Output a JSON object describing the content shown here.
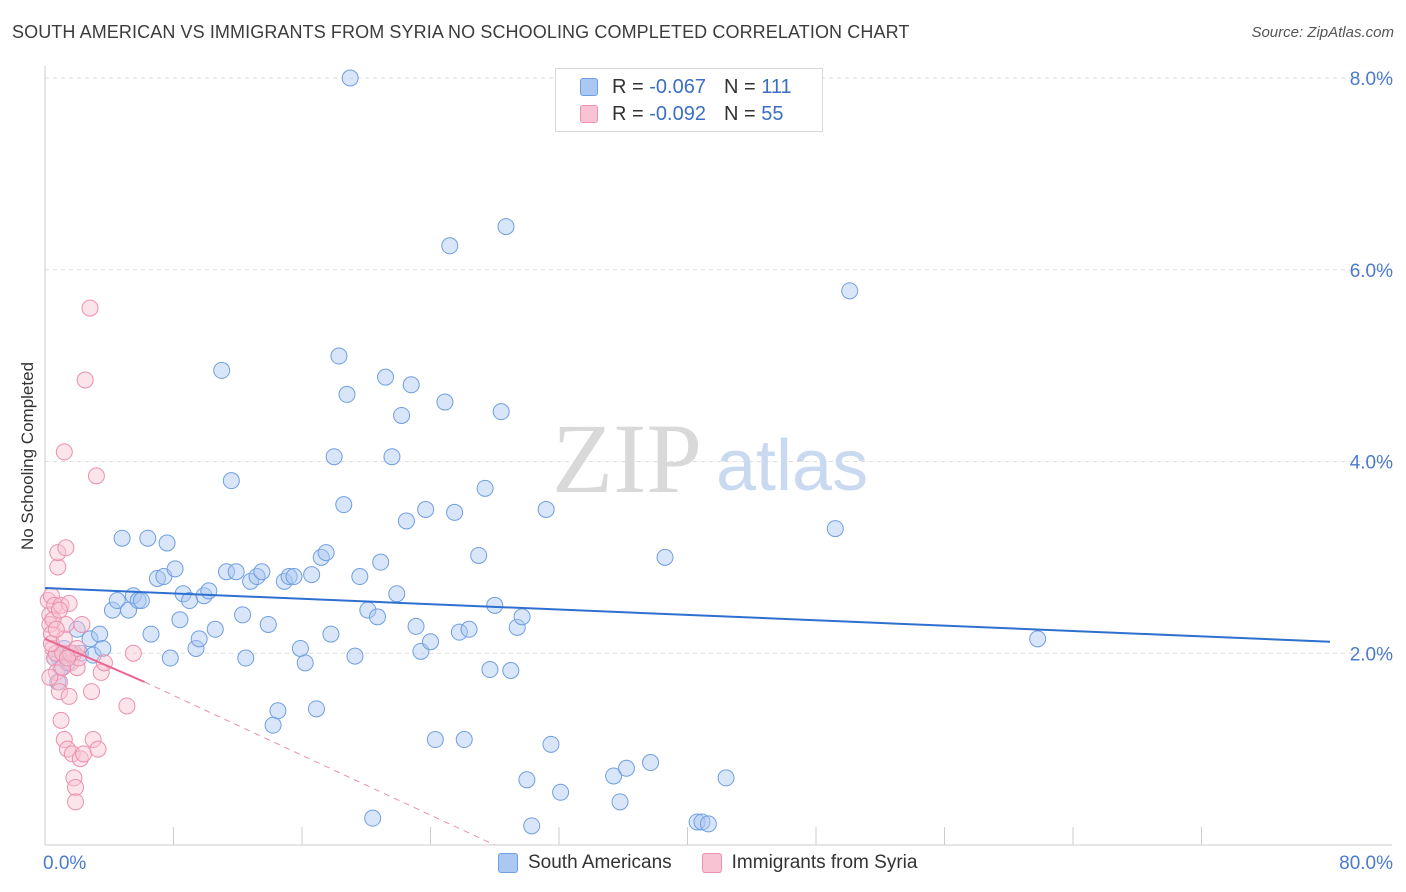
{
  "title": "SOUTH AMERICAN VS IMMIGRANTS FROM SYRIA NO SCHOOLING COMPLETED CORRELATION CHART",
  "source": "Source: ZipAtlas.com",
  "watermark": {
    "zip": "ZIP",
    "atlas": "atlas"
  },
  "legend": {
    "rows": [
      {
        "r_label": "R =",
        "r_value": "-0.067",
        "n_label": "N =",
        "n_value": "111",
        "fill": "#aac8f2",
        "stroke": "#6f9fe0"
      },
      {
        "r_label": "R =",
        "r_value": "-0.092",
        "n_label": "N =",
        "n_value": "55",
        "fill": "#f8c3d2",
        "stroke": "#eb90ad"
      }
    ]
  },
  "bottom_legend": [
    {
      "label": "South Americans",
      "fill": "#aac8f2",
      "stroke": "#6f9fe0"
    },
    {
      "label": "Immigrants from Syria",
      "fill": "#f8c3d2",
      "stroke": "#eb90ad"
    }
  ],
  "chart_data": {
    "type": "scatter",
    "title": "SOUTH AMERICAN VS IMMIGRANTS FROM SYRIA NO SCHOOLING COMPLETED CORRELATION CHART",
    "xlabel": "",
    "ylabel": "No Schooling Completed",
    "xlim": [
      0,
      80
    ],
    "ylim": [
      0,
      8.0
    ],
    "x_tick_labels": [
      "0.0%",
      "80.0%"
    ],
    "y_tick_labels": [
      "2.0%",
      "4.0%",
      "6.0%",
      "8.0%"
    ],
    "y_tick_values": [
      2,
      4,
      6,
      8
    ],
    "x_minor_ticks": [
      8,
      16,
      24,
      32,
      40,
      48,
      56,
      64,
      72
    ],
    "grid": true,
    "series": [
      {
        "name": "South Americans",
        "color": "#6f9fe0",
        "fill": "#aac8f2",
        "trend": {
          "x": [
            0,
            80
          ],
          "y": [
            2.68,
            2.12
          ]
        },
        "points": [
          [
            0.8,
            1.7
          ],
          [
            0.9,
            1.95
          ],
          [
            1.0,
            1.85
          ],
          [
            1.2,
            2.05
          ],
          [
            1.4,
            1.9
          ],
          [
            1.6,
            2.0
          ],
          [
            2.0,
            2.25
          ],
          [
            2.2,
            2.0
          ],
          [
            2.8,
            2.15
          ],
          [
            3.0,
            1.98
          ],
          [
            3.4,
            2.2
          ],
          [
            3.6,
            2.05
          ],
          [
            4.2,
            2.45
          ],
          [
            4.5,
            2.55
          ],
          [
            4.8,
            3.2
          ],
          [
            5.2,
            2.45
          ],
          [
            5.5,
            2.6
          ],
          [
            5.8,
            2.55
          ],
          [
            6.0,
            2.55
          ],
          [
            6.4,
            3.2
          ],
          [
            6.6,
            2.2
          ],
          [
            7.0,
            2.78
          ],
          [
            7.4,
            2.8
          ],
          [
            7.6,
            3.15
          ],
          [
            7.8,
            1.95
          ],
          [
            8.1,
            2.88
          ],
          [
            8.4,
            2.35
          ],
          [
            8.6,
            2.62
          ],
          [
            9.0,
            2.55
          ],
          [
            9.4,
            2.05
          ],
          [
            9.6,
            2.15
          ],
          [
            9.9,
            2.6
          ],
          [
            10.2,
            2.65
          ],
          [
            10.6,
            2.25
          ],
          [
            11.0,
            4.95
          ],
          [
            11.3,
            2.85
          ],
          [
            11.6,
            3.8
          ],
          [
            11.9,
            2.85
          ],
          [
            12.3,
            2.4
          ],
          [
            12.5,
            1.95
          ],
          [
            12.8,
            2.75
          ],
          [
            13.2,
            2.8
          ],
          [
            13.5,
            2.85
          ],
          [
            13.9,
            2.3
          ],
          [
            14.2,
            1.25
          ],
          [
            14.5,
            1.4
          ],
          [
            14.9,
            2.75
          ],
          [
            15.2,
            2.8
          ],
          [
            15.5,
            2.8
          ],
          [
            15.9,
            2.05
          ],
          [
            16.2,
            1.9
          ],
          [
            16.6,
            2.82
          ],
          [
            16.9,
            1.42
          ],
          [
            17.2,
            3.0
          ],
          [
            17.5,
            3.05
          ],
          [
            17.8,
            2.2
          ],
          [
            18.0,
            4.05
          ],
          [
            18.3,
            5.1
          ],
          [
            18.6,
            3.55
          ],
          [
            18.8,
            4.7
          ],
          [
            19.0,
            8.0
          ],
          [
            19.3,
            1.97
          ],
          [
            19.6,
            2.8
          ],
          [
            20.1,
            2.45
          ],
          [
            20.4,
            0.28
          ],
          [
            20.7,
            2.38
          ],
          [
            20.9,
            2.95
          ],
          [
            21.2,
            4.88
          ],
          [
            21.6,
            4.05
          ],
          [
            21.9,
            2.62
          ],
          [
            22.2,
            4.48
          ],
          [
            22.5,
            3.38
          ],
          [
            22.8,
            4.8
          ],
          [
            23.1,
            2.28
          ],
          [
            23.4,
            2.02
          ],
          [
            23.7,
            3.5
          ],
          [
            24.0,
            2.12
          ],
          [
            24.3,
            1.1
          ],
          [
            24.9,
            4.62
          ],
          [
            25.2,
            6.25
          ],
          [
            25.5,
            3.47
          ],
          [
            25.8,
            2.22
          ],
          [
            26.1,
            1.1
          ],
          [
            26.4,
            2.25
          ],
          [
            27.0,
            3.02
          ],
          [
            27.4,
            3.72
          ],
          [
            27.7,
            1.83
          ],
          [
            28.0,
            2.5
          ],
          [
            28.4,
            4.52
          ],
          [
            28.7,
            6.45
          ],
          [
            29.0,
            1.82
          ],
          [
            29.4,
            2.27
          ],
          [
            29.7,
            2.38
          ],
          [
            30.0,
            0.68
          ],
          [
            30.3,
            0.2
          ],
          [
            31.2,
            3.5
          ],
          [
            31.5,
            1.05
          ],
          [
            32.1,
            0.55
          ],
          [
            35.4,
            0.72
          ],
          [
            35.8,
            0.45
          ],
          [
            36.2,
            0.8
          ],
          [
            37.7,
            0.86
          ],
          [
            38.6,
            3.0
          ],
          [
            40.6,
            0.24
          ],
          [
            40.9,
            0.24
          ],
          [
            41.3,
            0.22
          ],
          [
            42.4,
            0.7
          ],
          [
            49.2,
            3.3
          ],
          [
            50.1,
            5.78
          ],
          [
            61.8,
            2.15
          ],
          [
            0.6,
            1.95
          ]
        ]
      },
      {
        "name": "Immigrants from Syria",
        "color": "#eb90ad",
        "fill": "#f8c3d2",
        "trend": {
          "x": [
            0,
            6.2
          ],
          "y": [
            2.15,
            1.7
          ]
        },
        "trend_dashed": {
          "x": [
            6.2,
            28.0
          ],
          "y": [
            1.7,
            0.0
          ]
        },
        "points": [
          [
            0.2,
            2.55
          ],
          [
            0.3,
            2.4
          ],
          [
            0.3,
            2.3
          ],
          [
            0.4,
            2.6
          ],
          [
            0.4,
            2.2
          ],
          [
            0.5,
            2.05
          ],
          [
            0.6,
            1.95
          ],
          [
            0.6,
            2.5
          ],
          [
            0.7,
            2.0
          ],
          [
            0.7,
            1.8
          ],
          [
            0.8,
            2.9
          ],
          [
            0.8,
            3.05
          ],
          [
            0.9,
            1.7
          ],
          [
            0.9,
            1.6
          ],
          [
            1.0,
            2.5
          ],
          [
            1.0,
            1.3
          ],
          [
            1.1,
            2.0
          ],
          [
            1.2,
            1.1
          ],
          [
            1.2,
            4.1
          ],
          [
            1.3,
            3.1
          ],
          [
            1.3,
            2.3
          ],
          [
            1.4,
            1.0
          ],
          [
            1.5,
            2.52
          ],
          [
            1.5,
            1.55
          ],
          [
            1.6,
            1.9
          ],
          [
            1.7,
            0.95
          ],
          [
            1.8,
            2.0
          ],
          [
            1.8,
            0.7
          ],
          [
            1.9,
            0.6
          ],
          [
            1.9,
            0.45
          ],
          [
            2.0,
            1.85
          ],
          [
            2.1,
            1.95
          ],
          [
            2.2,
            0.9
          ],
          [
            2.3,
            2.3
          ],
          [
            2.4,
            0.95
          ],
          [
            2.5,
            4.85
          ],
          [
            2.8,
            5.6
          ],
          [
            2.9,
            1.6
          ],
          [
            3.0,
            1.1
          ],
          [
            3.2,
            3.85
          ],
          [
            3.3,
            1.0
          ],
          [
            3.5,
            1.8
          ],
          [
            3.7,
            1.9
          ],
          [
            5.1,
            1.45
          ],
          [
            5.5,
            2.0
          ],
          [
            0.5,
            2.35
          ],
          [
            0.9,
            2.45
          ],
          [
            1.1,
            1.85
          ],
          [
            0.4,
            2.1
          ],
          [
            1.6,
            2.0
          ],
          [
            0.3,
            1.75
          ],
          [
            1.2,
            2.15
          ],
          [
            2.0,
            2.05
          ],
          [
            0.7,
            2.25
          ],
          [
            1.4,
            1.95
          ]
        ]
      }
    ]
  }
}
